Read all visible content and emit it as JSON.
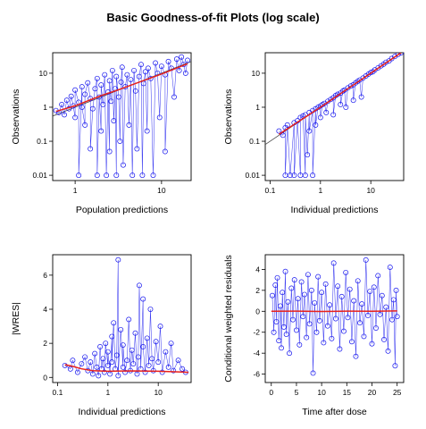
{
  "title": "Basic Goodness-of-fit Plots (log scale)",
  "colors": {
    "points": "#1414ee",
    "smooth": "#e8211c",
    "reference": "#444444",
    "frame": "#000000"
  },
  "chart_data": [
    {
      "id": "p1",
      "type": "scatter",
      "xlabel": "Population predictions",
      "ylabel": "Observations",
      "xscale": "log",
      "yscale": "log",
      "xlim": [
        0.55,
        22
      ],
      "ylim": [
        0.007,
        40
      ],
      "xticks": [
        1,
        10
      ],
      "xtick_labels": [
        "1",
        "10"
      ],
      "yticks": [
        0.01,
        0.1,
        1,
        10
      ],
      "ytick_labels": [
        "0.01",
        "0.1",
        "1",
        "10"
      ],
      "smooth": [
        [
          0.6,
          0.75
        ],
        [
          1,
          1.1
        ],
        [
          2,
          2.2
        ],
        [
          3,
          3.1
        ],
        [
          5,
          5.0
        ],
        [
          10,
          9.5
        ],
        [
          20,
          19
        ]
      ],
      "reference_line": true,
      "points": [
        [
          0.6,
          0.8
        ],
        [
          0.65,
          0.7
        ],
        [
          0.7,
          1.2
        ],
        [
          0.75,
          0.6
        ],
        [
          0.8,
          1.6
        ],
        [
          0.85,
          0.9
        ],
        [
          0.9,
          2.1
        ],
        [
          0.95,
          1.1
        ],
        [
          1.0,
          0.5
        ],
        [
          1.0,
          3.2
        ],
        [
          1.1,
          1.4
        ],
        [
          1.1,
          0.01
        ],
        [
          1.2,
          4.0
        ],
        [
          1.2,
          1.0
        ],
        [
          1.3,
          0.3
        ],
        [
          1.3,
          2.4
        ],
        [
          1.4,
          5.2
        ],
        [
          1.5,
          1.8
        ],
        [
          1.5,
          0.06
        ],
        [
          1.6,
          0.9
        ],
        [
          1.7,
          3.5
        ],
        [
          1.8,
          7.0
        ],
        [
          1.8,
          0.01
        ],
        [
          1.9,
          2.0
        ],
        [
          2.0,
          0.2
        ],
        [
          2.0,
          4.5
        ],
        [
          2.1,
          1.2
        ],
        [
          2.2,
          9.0
        ],
        [
          2.3,
          0.01
        ],
        [
          2.4,
          2.8
        ],
        [
          2.5,
          0.05
        ],
        [
          2.5,
          6.0
        ],
        [
          2.6,
          1.5
        ],
        [
          2.7,
          12
        ],
        [
          2.8,
          0.4
        ],
        [
          2.9,
          3.5
        ],
        [
          3.0,
          0.01
        ],
        [
          3.0,
          8.0
        ],
        [
          3.2,
          2.0
        ],
        [
          3.3,
          0.1
        ],
        [
          3.4,
          5.5
        ],
        [
          3.5,
          15
        ],
        [
          3.6,
          0.02
        ],
        [
          3.8,
          4.0
        ],
        [
          4.0,
          9.0
        ],
        [
          4.2,
          0.3
        ],
        [
          4.4,
          6.5
        ],
        [
          4.6,
          0.01
        ],
        [
          4.8,
          12
        ],
        [
          5.0,
          3.0
        ],
        [
          5.2,
          0.06
        ],
        [
          5.5,
          8.0
        ],
        [
          5.8,
          18
        ],
        [
          6.0,
          0.01
        ],
        [
          6.2,
          5.0
        ],
        [
          6.5,
          11
        ],
        [
          6.8,
          0.2
        ],
        [
          7.0,
          14
        ],
        [
          7.5,
          7.0
        ],
        [
          8.0,
          0.01
        ],
        [
          8.5,
          20
        ],
        [
          9.0,
          10
        ],
        [
          9.5,
          0.5
        ],
        [
          10,
          16
        ],
        [
          11,
          9.0
        ],
        [
          11,
          0.05
        ],
        [
          12,
          22
        ],
        [
          13,
          14
        ],
        [
          14,
          2.0
        ],
        [
          15,
          26
        ],
        [
          16,
          12
        ],
        [
          17,
          30
        ],
        [
          18,
          18
        ],
        [
          19,
          10
        ],
        [
          20,
          24
        ]
      ]
    },
    {
      "id": "p2",
      "type": "scatter",
      "xlabel": "Individual predictions",
      "ylabel": "Observations",
      "xscale": "log",
      "yscale": "log",
      "xlim": [
        0.08,
        45
      ],
      "ylim": [
        0.007,
        40
      ],
      "xticks": [
        0.1,
        1,
        10
      ],
      "xtick_labels": [
        "0.1",
        "1",
        "10"
      ],
      "yticks": [
        0.01,
        0.1,
        1,
        10
      ],
      "ytick_labels": [
        "0.01",
        "0.1",
        "1",
        "10"
      ],
      "smooth": [
        [
          0.15,
          0.16
        ],
        [
          1,
          1.0
        ],
        [
          10,
          10
        ],
        [
          40,
          40
        ]
      ],
      "reference_line": true,
      "points": [
        [
          0.15,
          0.2
        ],
        [
          0.18,
          0.15
        ],
        [
          0.2,
          0.25
        ],
        [
          0.2,
          0.01
        ],
        [
          0.22,
          0.3
        ],
        [
          0.25,
          0.01
        ],
        [
          0.3,
          0.35
        ],
        [
          0.3,
          0.01
        ],
        [
          0.35,
          0.4
        ],
        [
          0.4,
          0.01
        ],
        [
          0.4,
          0.5
        ],
        [
          0.45,
          0.55
        ],
        [
          0.5,
          0.01
        ],
        [
          0.5,
          0.6
        ],
        [
          0.55,
          0.04
        ],
        [
          0.6,
          0.7
        ],
        [
          0.6,
          0.2
        ],
        [
          0.7,
          0.8
        ],
        [
          0.7,
          0.01
        ],
        [
          0.8,
          0.9
        ],
        [
          0.8,
          0.3
        ],
        [
          0.9,
          1.0
        ],
        [
          1.0,
          1.1
        ],
        [
          1.0,
          0.5
        ],
        [
          1.1,
          1.2
        ],
        [
          1.2,
          1.3
        ],
        [
          1.3,
          0.7
        ],
        [
          1.4,
          1.5
        ],
        [
          1.6,
          1.7
        ],
        [
          1.8,
          1.9
        ],
        [
          1.8,
          0.6
        ],
        [
          2.0,
          2.2
        ],
        [
          2.2,
          2.4
        ],
        [
          2.5,
          2.6
        ],
        [
          2.5,
          1.2
        ],
        [
          2.8,
          3.0
        ],
        [
          3.0,
          3.2
        ],
        [
          3.2,
          1.0
        ],
        [
          3.5,
          3.7
        ],
        [
          4.0,
          4.2
        ],
        [
          4.5,
          4.6
        ],
        [
          4.5,
          1.6
        ],
        [
          5.0,
          5.2
        ],
        [
          5.5,
          5.8
        ],
        [
          6.0,
          6.3
        ],
        [
          6.5,
          2.0
        ],
        [
          7.0,
          7.2
        ],
        [
          8.0,
          8.3
        ],
        [
          9.0,
          9.4
        ],
        [
          10,
          10.5
        ],
        [
          11,
          11
        ],
        [
          12,
          12.5
        ],
        [
          14,
          14.5
        ],
        [
          16,
          16.5
        ],
        [
          18,
          18.5
        ],
        [
          20,
          21
        ],
        [
          23,
          23
        ],
        [
          26,
          27
        ],
        [
          30,
          31
        ],
        [
          35,
          36
        ],
        [
          40,
          40
        ]
      ]
    },
    {
      "id": "p3",
      "type": "scatter",
      "xlabel": "Individual predictions",
      "ylabel": "|WRES|",
      "xscale": "log",
      "yscale": "linear",
      "xlim": [
        0.08,
        45
      ],
      "ylim": [
        -0.3,
        7.2
      ],
      "xticks": [
        0.1,
        1,
        10
      ],
      "xtick_labels": [
        "0.1",
        "1",
        "10"
      ],
      "yticks": [
        0,
        2,
        4,
        6
      ],
      "ytick_labels": [
        "0",
        "2",
        "4",
        "6"
      ],
      "smooth": [
        [
          0.14,
          0.75
        ],
        [
          0.2,
          0.65
        ],
        [
          0.3,
          0.5
        ],
        [
          0.5,
          0.4
        ],
        [
          1,
          0.36
        ],
        [
          3,
          0.38
        ],
        [
          10,
          0.36
        ],
        [
          30,
          0.32
        ],
        [
          40,
          0.3
        ]
      ],
      "reference_line": false,
      "points": [
        [
          0.14,
          0.7
        ],
        [
          0.18,
          0.5
        ],
        [
          0.2,
          1.0
        ],
        [
          0.25,
          0.3
        ],
        [
          0.3,
          0.8
        ],
        [
          0.35,
          1.2
        ],
        [
          0.4,
          0.4
        ],
        [
          0.45,
          0.9
        ],
        [
          0.5,
          0.2
        ],
        [
          0.55,
          1.4
        ],
        [
          0.6,
          0.6
        ],
        [
          0.65,
          0.1
        ],
        [
          0.7,
          1.8
        ],
        [
          0.75,
          0.5
        ],
        [
          0.8,
          1.1
        ],
        [
          0.85,
          0.3
        ],
        [
          0.9,
          2.0
        ],
        [
          1.0,
          0.7
        ],
        [
          1.0,
          1.5
        ],
        [
          1.1,
          0.2
        ],
        [
          1.2,
          2.4
        ],
        [
          1.2,
          0.9
        ],
        [
          1.3,
          3.2
        ],
        [
          1.4,
          0.5
        ],
        [
          1.5,
          1.3
        ],
        [
          1.6,
          6.9
        ],
        [
          1.6,
          0.1
        ],
        [
          1.8,
          2.8
        ],
        [
          2.0,
          0.6
        ],
        [
          2.0,
          1.9
        ],
        [
          2.2,
          0.3
        ],
        [
          2.4,
          1.0
        ],
        [
          2.6,
          3.4
        ],
        [
          2.8,
          0.4
        ],
        [
          3.0,
          1.6
        ],
        [
          3.2,
          0.8
        ],
        [
          3.5,
          2.6
        ],
        [
          3.8,
          0.2
        ],
        [
          4.0,
          1.2
        ],
        [
          4.2,
          5.4
        ],
        [
          4.5,
          0.5
        ],
        [
          5.0,
          4.6
        ],
        [
          5.0,
          1.8
        ],
        [
          5.5,
          0.3
        ],
        [
          6.0,
          2.3
        ],
        [
          6.5,
          0.7
        ],
        [
          7.0,
          4.0
        ],
        [
          7.5,
          1.1
        ],
        [
          8.0,
          0.4
        ],
        [
          9.0,
          2.1
        ],
        [
          10,
          0.9
        ],
        [
          11,
          3.0
        ],
        [
          12,
          0.3
        ],
        [
          14,
          1.5
        ],
        [
          16,
          0.6
        ],
        [
          18,
          2.0
        ],
        [
          20,
          0.4
        ],
        [
          25,
          1.0
        ],
        [
          30,
          0.5
        ],
        [
          35,
          0.3
        ]
      ]
    },
    {
      "id": "p4",
      "type": "scatter",
      "xlabel": "Time after dose",
      "ylabel": "Conditional weighted residuals",
      "xscale": "linear",
      "yscale": "linear",
      "xlim": [
        -1.2,
        26.3
      ],
      "ylim": [
        -6.8,
        5.4
      ],
      "xticks": [
        0,
        5,
        10,
        15,
        20,
        25
      ],
      "xtick_labels": [
        "0",
        "5",
        "10",
        "15",
        "20",
        "25"
      ],
      "yticks": [
        -6,
        -4,
        -2,
        0,
        2,
        4
      ],
      "ytick_labels": [
        "-6",
        "-4",
        "-2",
        "0",
        "2",
        "4"
      ],
      "smooth": [
        [
          0,
          0.0
        ],
        [
          5,
          0.02
        ],
        [
          10,
          -0.02
        ],
        [
          15,
          0.02
        ],
        [
          20,
          0.0
        ],
        [
          25,
          0.03
        ]
      ],
      "reference_line": false,
      "points": [
        [
          0.2,
          1.5
        ],
        [
          0.5,
          -2.0
        ],
        [
          0.8,
          2.5
        ],
        [
          1.0,
          -1.0
        ],
        [
          1.2,
          3.2
        ],
        [
          1.5,
          -2.8
        ],
        [
          1.8,
          0.5
        ],
        [
          2.0,
          -3.5
        ],
        [
          2.2,
          1.8
        ],
        [
          2.5,
          -1.5
        ],
        [
          2.8,
          3.8
        ],
        [
          3.0,
          -2.2
        ],
        [
          3.3,
          0.9
        ],
        [
          3.6,
          -4.0
        ],
        [
          4.0,
          2.2
        ],
        [
          4.3,
          -0.8
        ],
        [
          4.6,
          3.0
        ],
        [
          5.0,
          -1.8
        ],
        [
          5.3,
          1.2
        ],
        [
          5.6,
          -3.2
        ],
        [
          6.0,
          2.8
        ],
        [
          6.3,
          -0.5
        ],
        [
          6.6,
          1.6
        ],
        [
          7.0,
          -2.5
        ],
        [
          7.3,
          3.5
        ],
        [
          7.6,
          -1.2
        ],
        [
          8.0,
          2.0
        ],
        [
          8.3,
          -5.9
        ],
        [
          8.6,
          0.8
        ],
        [
          9.0,
          -2.0
        ],
        [
          9.3,
          3.3
        ],
        [
          9.6,
          -0.9
        ],
        [
          10,
          1.8
        ],
        [
          10.4,
          -3.0
        ],
        [
          10.8,
          2.6
        ],
        [
          11.2,
          -1.4
        ],
        [
          11.6,
          0.6
        ],
        [
          12,
          -2.6
        ],
        [
          12.4,
          4.6
        ],
        [
          12.8,
          -0.7
        ],
        [
          13.2,
          2.4
        ],
        [
          13.6,
          -3.6
        ],
        [
          14,
          1.4
        ],
        [
          14.4,
          -1.9
        ],
        [
          14.8,
          3.7
        ],
        [
          15.2,
          -0.6
        ],
        [
          15.6,
          2.1
        ],
        [
          16,
          -2.9
        ],
        [
          16.4,
          1.0
        ],
        [
          16.8,
          -4.3
        ],
        [
          17.2,
          2.9
        ],
        [
          17.6,
          -1.1
        ],
        [
          18,
          0.7
        ],
        [
          18.4,
          -2.4
        ],
        [
          18.8,
          4.9
        ],
        [
          19.2,
          -0.4
        ],
        [
          19.6,
          1.9
        ],
        [
          20,
          -3.1
        ],
        [
          20.4,
          2.3
        ],
        [
          20.8,
          -1.6
        ],
        [
          21.2,
          3.4
        ],
        [
          21.6,
          -0.3
        ],
        [
          22,
          1.5
        ],
        [
          22.4,
          -2.7
        ],
        [
          22.8,
          0.4
        ],
        [
          23.2,
          -3.8
        ],
        [
          23.6,
          4.2
        ],
        [
          24,
          -0.8
        ],
        [
          24.3,
          1.1
        ],
        [
          24.6,
          -5.2
        ],
        [
          24.8,
          2.0
        ],
        [
          25.0,
          -0.5
        ]
      ]
    }
  ]
}
